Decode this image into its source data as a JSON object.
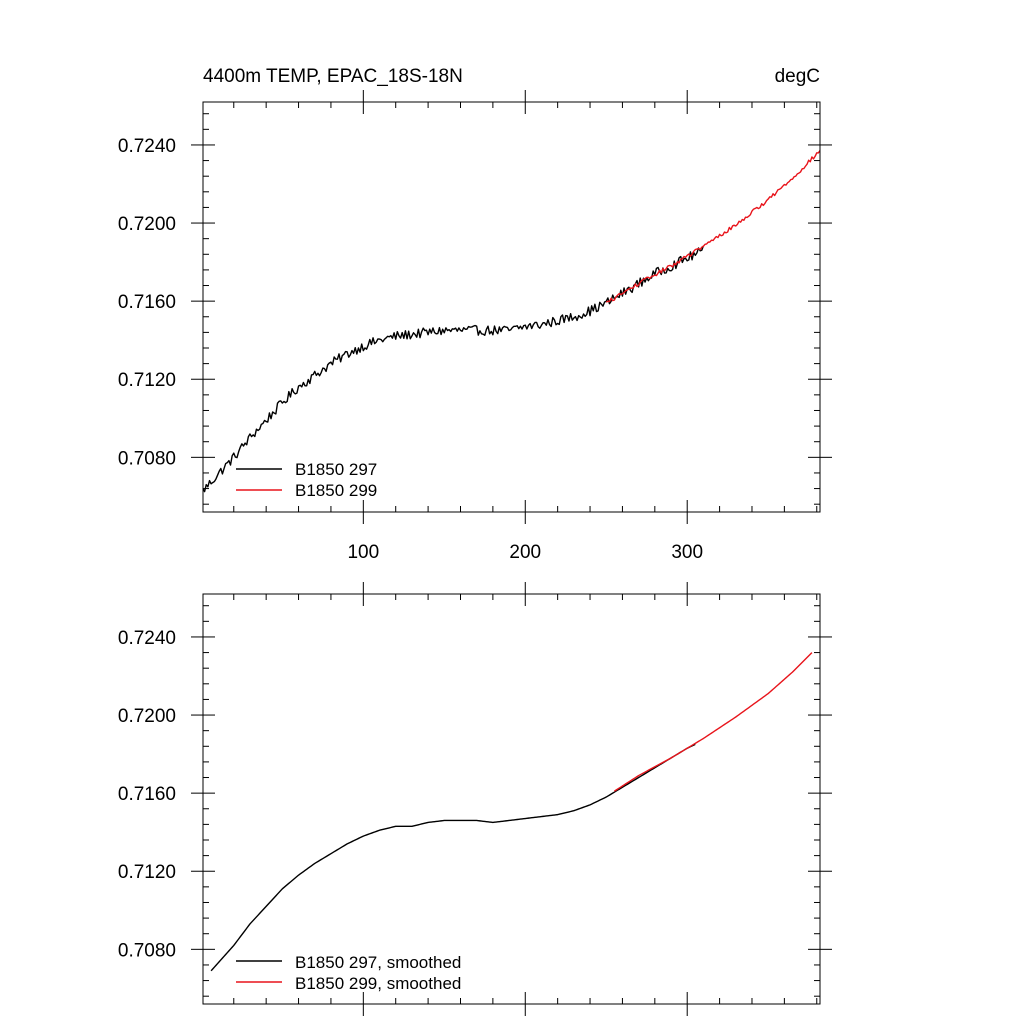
{
  "colors": {
    "series_297": "#000000",
    "series_299": "#e8141b",
    "axis": "#000000",
    "background": "#ffffff"
  },
  "chart_data": [
    {
      "type": "line",
      "title": "4400m TEMP, EPAC_18S-18N",
      "units": "degC",
      "xlim": [
        1,
        382
      ],
      "ylim": [
        0.7052,
        0.7262
      ],
      "xticks": [
        100,
        200,
        300
      ],
      "xtick_labels": [
        "100",
        "200",
        "300"
      ],
      "yticks": [
        0.708,
        0.712,
        0.716,
        0.72,
        0.724
      ],
      "ytick_labels": [
        "0.7080",
        "0.7120",
        "0.7160",
        "0.7200",
        "0.7240"
      ],
      "grid": false,
      "legend_position": "bottom-left",
      "series": [
        {
          "name": "B1850 297",
          "color": "#000000",
          "x": [
            1,
            10,
            20,
            30,
            40,
            50,
            60,
            70,
            80,
            90,
            100,
            110,
            120,
            130,
            140,
            150,
            160,
            170,
            180,
            190,
            200,
            210,
            220,
            230,
            240,
            250,
            260,
            270,
            280,
            290,
            300,
            310
          ],
          "y": [
            0.7063,
            0.7071,
            0.708,
            0.709,
            0.7099,
            0.7108,
            0.7116,
            0.7122,
            0.7128,
            0.7133,
            0.7137,
            0.714,
            0.7142,
            0.7143,
            0.7144,
            0.7145,
            0.7145,
            0.7145,
            0.7145,
            0.7145,
            0.7147,
            0.7148,
            0.715,
            0.7152,
            0.7155,
            0.7159,
            0.7164,
            0.7169,
            0.7174,
            0.7178,
            0.7182,
            0.7186
          ],
          "noise_amplitude": 0.00025
        },
        {
          "name": "B1850 299",
          "color": "#e8141b",
          "x": [
            250,
            270,
            290,
            310,
            330,
            350,
            365,
            382
          ],
          "y": [
            0.7159,
            0.7169,
            0.7178,
            0.7188,
            0.7199,
            0.7212,
            0.7223,
            0.7237
          ],
          "noise_amplitude": 0.0001
        }
      ]
    },
    {
      "type": "line",
      "title": "",
      "units": "",
      "xlim": [
        1,
        382
      ],
      "ylim": [
        0.7052,
        0.7262
      ],
      "xticks": [
        100,
        200,
        300
      ],
      "xtick_labels": [],
      "yticks": [
        0.708,
        0.712,
        0.716,
        0.72,
        0.724
      ],
      "ytick_labels": [
        "0.7080",
        "0.7120",
        "0.7160",
        "0.7200",
        "0.7240"
      ],
      "grid": false,
      "legend_position": "bottom-left",
      "series": [
        {
          "name": "B1850 297, smoothed",
          "color": "#000000",
          "x": [
            6,
            20,
            30,
            40,
            50,
            60,
            70,
            80,
            90,
            100,
            110,
            120,
            130,
            140,
            150,
            160,
            170,
            180,
            190,
            200,
            210,
            220,
            230,
            240,
            250,
            260,
            270,
            280,
            290,
            300,
            305
          ],
          "y": [
            0.7069,
            0.7082,
            0.7093,
            0.7102,
            0.7111,
            0.7118,
            0.7124,
            0.7129,
            0.7134,
            0.7138,
            0.7141,
            0.7143,
            0.7143,
            0.7145,
            0.7146,
            0.7146,
            0.7146,
            0.7145,
            0.7146,
            0.7147,
            0.7148,
            0.7149,
            0.7151,
            0.7154,
            0.7158,
            0.7163,
            0.7168,
            0.7173,
            0.7178,
            0.7183,
            0.7185
          ],
          "noise_amplitude": 0
        },
        {
          "name": "B1850 299, smoothed",
          "color": "#e8141b",
          "x": [
            255,
            270,
            290,
            310,
            330,
            350,
            365,
            377
          ],
          "y": [
            0.7161,
            0.7169,
            0.7178,
            0.7188,
            0.7199,
            0.7211,
            0.7222,
            0.7232
          ],
          "noise_amplitude": 0
        }
      ]
    }
  ]
}
